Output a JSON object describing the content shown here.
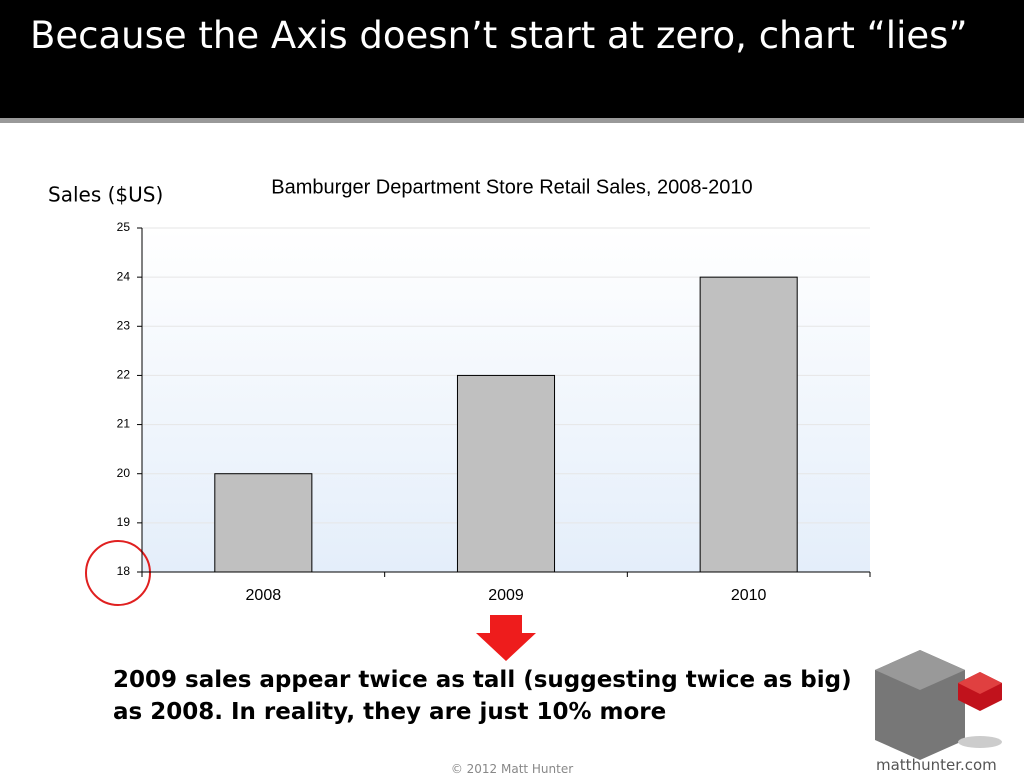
{
  "slide": {
    "title": "Because the Axis doesn’t start at zero, chart “lies”",
    "caption": "2009 sales appear twice as tall (suggesting twice as big) as 2008. In reality, they are just 10% more",
    "footer": "© 2012 Matt Hunter",
    "logo": "matthunter.com"
  },
  "chart_data": {
    "type": "bar",
    "title": "Bamburger Department Store Retail Sales, 2008-2010",
    "y_label": "Sales ($US)",
    "categories": [
      "2008",
      "2009",
      "2010"
    ],
    "values": [
      20,
      22,
      24
    ],
    "color": "#c0c0c0",
    "ylim": [
      18,
      25
    ],
    "yticks": [
      18,
      19,
      20,
      21,
      22,
      23,
      24,
      25
    ],
    "grid": true
  }
}
